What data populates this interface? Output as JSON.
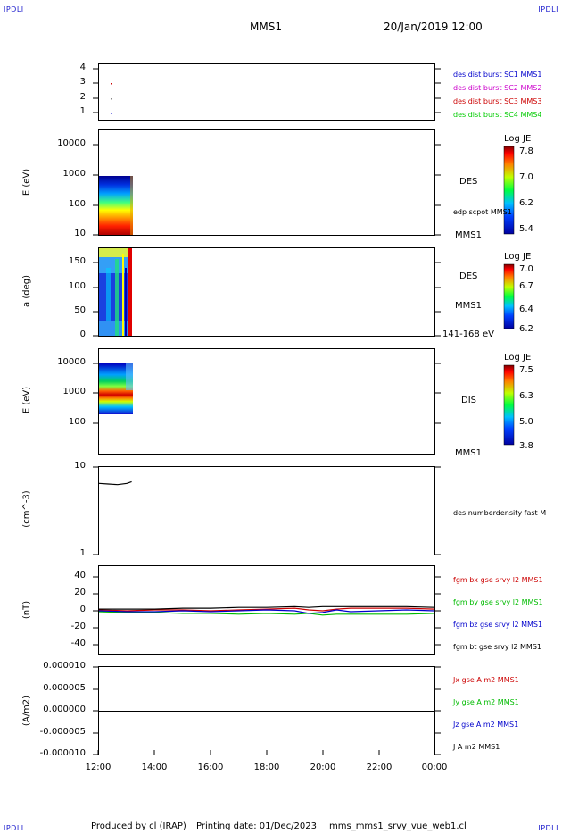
{
  "corner_label": "IPDLI",
  "header": {
    "spacecraft": "MMS1",
    "datetime": "20/Jan/2019 12:00"
  },
  "footer": {
    "producer": "Produced by cl (IRAP)",
    "print_date": "Printing date: 01/Dec/2023",
    "filename": "mms_mms1_srvy_vue_web1.cl"
  },
  "x_axis": {
    "ticks": [
      "12:00",
      "14:00",
      "16:00",
      "18:00",
      "20:00",
      "22:00",
      "00:00"
    ]
  },
  "panels": {
    "p1": {
      "yticks": [
        "4",
        "3",
        "2",
        "1"
      ],
      "legend": [
        {
          "text": "des dist burst SC1 MMS1",
          "color": "#0000cc"
        },
        {
          "text": "des dist burst SC2 MMS2",
          "color": "#cc00cc"
        },
        {
          "text": "des dist burst SC3 MMS3",
          "color": "#cc0000"
        },
        {
          "text": "des dist burst SC4 MMS4",
          "color": "#00cc00"
        }
      ]
    },
    "p2": {
      "ylabel": "E (eV)",
      "yticks": [
        "10000",
        "1000",
        "100",
        "10"
      ],
      "inst": "DES",
      "sub": "edp scpot MMS1",
      "bottom": "MMS1",
      "cbar": {
        "title": "Log JE",
        "ticks": [
          "7.8",
          "7.0",
          "6.2",
          "5.4"
        ]
      }
    },
    "p3": {
      "ylabel": "a (deg)",
      "yticks": [
        "150",
        "100",
        "50",
        "0"
      ],
      "inst": "DES",
      "sub": "MMS1",
      "bottom": "141-168 eV",
      "cbar": {
        "title": "Log JE",
        "ticks": [
          "7.0",
          "6.7",
          "6.4",
          "6.2"
        ]
      }
    },
    "p4": {
      "ylabel": "E (eV)",
      "yticks": [
        "10000",
        "1000",
        "100"
      ],
      "inst": "DIS",
      "bottom": "MMS1",
      "cbar": {
        "title": "Log JE",
        "ticks": [
          "7.5",
          "6.3",
          "5.0",
          "3.8"
        ]
      }
    },
    "p5": {
      "ylabel": "(cm^-3)",
      "yticks": [
        "10",
        "1"
      ],
      "legend": [
        {
          "text": "des numberdensity fast M",
          "color": "#000000"
        }
      ]
    },
    "p6": {
      "ylabel": "(nT)",
      "yticks": [
        "40",
        "20",
        "0",
        "-20",
        "-40"
      ],
      "legend": [
        {
          "text": "fgm bx gse srvy l2 MMS1",
          "color": "#cc0000"
        },
        {
          "text": "fgm by gse srvy l2 MMS1",
          "color": "#00bb00"
        },
        {
          "text": "fgm bz gse srvy l2 MMS1",
          "color": "#0000cc"
        },
        {
          "text": "fgm bt gse srvy l2 MMS1",
          "color": "#000000"
        }
      ]
    },
    "p7": {
      "ylabel": "(A/m2)",
      "yticks": [
        "0.000010",
        "0.000005",
        "0.000000",
        "-0.000005",
        "-0.000010"
      ],
      "legend": [
        {
          "text": "Jx gse A m2 MMS1",
          "color": "#cc0000"
        },
        {
          "text": "Jy gse A m2 MMS1",
          "color": "#00bb00"
        },
        {
          "text": "Jz gse A m2 MMS1",
          "color": "#0000cc"
        },
        {
          "text": "J A m2 MMS1",
          "color": "#000000"
        }
      ]
    }
  },
  "chart_data": {
    "type": "line",
    "x_range": [
      "12:00",
      "00:00"
    ],
    "series": [
      {
        "name": "fgm bx gse srvy l2 MMS1",
        "color": "#cc0000",
        "x": [
          "12:00",
          "13:00",
          "14:00",
          "15:00",
          "16:00",
          "17:00",
          "18:00",
          "19:00",
          "19:30",
          "20:00",
          "20:30",
          "21:00",
          "22:00",
          "23:00",
          "00:00"
        ],
        "y": [
          1,
          0,
          1,
          1,
          0,
          1,
          2,
          3,
          1,
          0,
          2,
          3,
          3,
          3,
          2
        ]
      },
      {
        "name": "fgm by gse srvy l2 MMS1",
        "color": "#00bb00",
        "x": [
          "12:00",
          "13:00",
          "14:00",
          "15:00",
          "16:00",
          "17:00",
          "18:00",
          "19:00",
          "19:30",
          "20:00",
          "20:30",
          "21:00",
          "22:00",
          "23:00",
          "00:00"
        ],
        "y": [
          -1,
          -2,
          -2,
          -3,
          -3,
          -4,
          -3,
          -4,
          -3,
          -5,
          -4,
          -4,
          -4,
          -4,
          -3
        ]
      },
      {
        "name": "fgm bz gse srvy l2 MMS1",
        "color": "#0000cc",
        "x": [
          "12:00",
          "13:00",
          "14:00",
          "15:00",
          "16:00",
          "17:00",
          "18:00",
          "19:00",
          "19:30",
          "20:00",
          "20:30",
          "21:00",
          "22:00",
          "23:00",
          "00:00"
        ],
        "y": [
          0,
          -1,
          -1,
          0,
          -1,
          0,
          1,
          0,
          -3,
          -2,
          1,
          -1,
          0,
          1,
          0
        ]
      },
      {
        "name": "fgm bt gse srvy l2 MMS1",
        "color": "#000000",
        "x": [
          "12:00",
          "13:00",
          "14:00",
          "15:00",
          "16:00",
          "17:00",
          "18:00",
          "19:00",
          "19:30",
          "20:00",
          "20:30",
          "21:00",
          "22:00",
          "23:00",
          "00:00"
        ],
        "y": [
          2,
          2,
          2,
          3,
          3,
          4,
          4,
          5,
          4,
          5,
          5,
          5,
          5,
          5,
          4
        ]
      },
      {
        "name": "des numberdensity fast M",
        "color": "#000000",
        "x": [
          "12:00",
          "12:20",
          "12:40",
          "13:00",
          "13:10"
        ],
        "y": [
          6.5,
          6.4,
          6.3,
          6.5,
          6.8
        ]
      }
    ],
    "ylim_nT": [
      -50,
      50
    ]
  }
}
